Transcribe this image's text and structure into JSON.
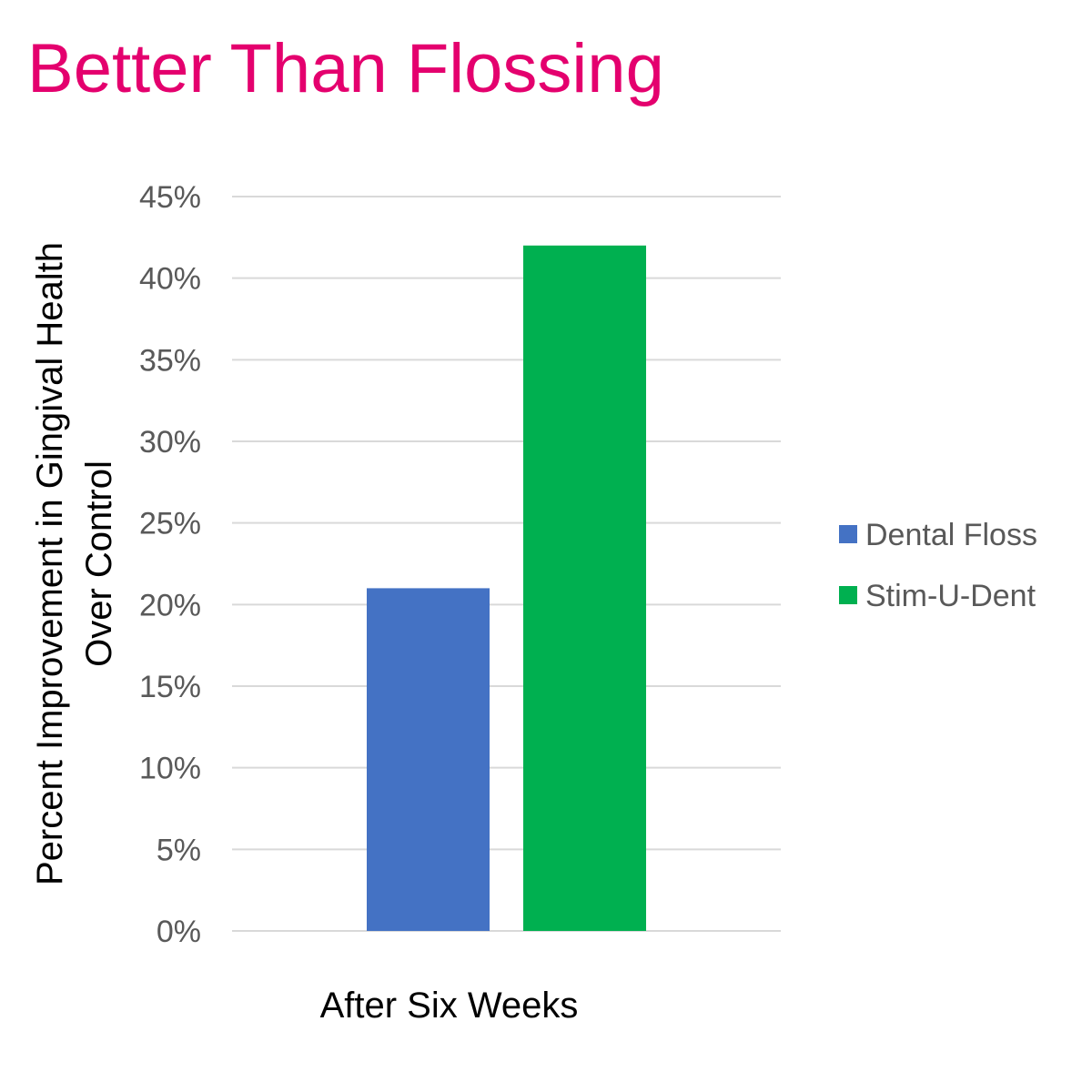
{
  "colors": {
    "title": "#E4006E",
    "gridline": "#D9D9D9",
    "tick_text": "#595959",
    "axis_title_text": "#000000",
    "legend_text": "#595959"
  },
  "chart_data": {
    "type": "bar",
    "title": "Better Than Flossing",
    "categories": [
      "After Six Weeks"
    ],
    "series": [
      {
        "name": "Dental Floss",
        "color": "#4472C4",
        "values": [
          21
        ]
      },
      {
        "name": "Stim-U-Dent",
        "color": "#00B050",
        "values": [
          42
        ]
      }
    ],
    "ylabel_lines": [
      "Percent Improvement in Gingival Health",
      "Over Control"
    ],
    "ylim": [
      0,
      45
    ],
    "ytick_step": 5,
    "ytick_labels": [
      "0%",
      "5%",
      "10%",
      "15%",
      "20%",
      "25%",
      "30%",
      "35%",
      "40%",
      "45%"
    ],
    "grid": true,
    "legend_position": "right"
  }
}
